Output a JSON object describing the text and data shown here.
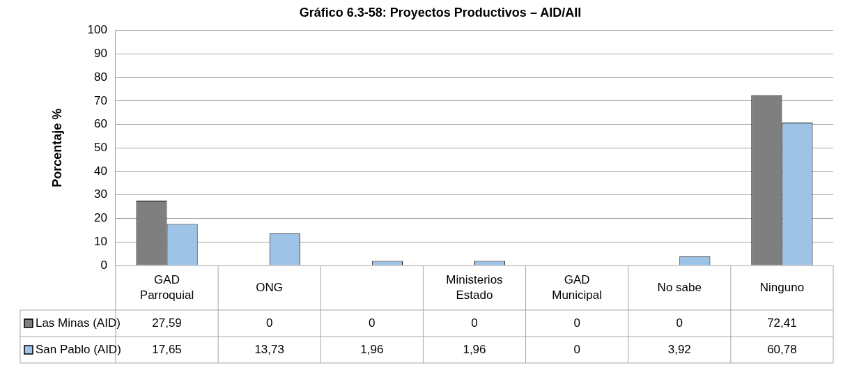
{
  "chart_data": {
    "type": "bar",
    "title": "Gráfico 6.3-58: Proyectos Productivos – AID/AII",
    "ylabel": "Porcentaje %",
    "categories": [
      "GAD Parroquial",
      "ONG",
      null,
      "Ministerios Estado",
      "GAD Municipal",
      "No sabe",
      "Ninguno"
    ],
    "series": [
      {
        "name": "Las Minas (AID)",
        "color": "#7f7f7f",
        "values": [
          27.59,
          0,
          0,
          0,
          0,
          0,
          72.41
        ],
        "value_labels": [
          "27,59",
          "0",
          "0",
          "0",
          "0",
          "0",
          "72,41"
        ]
      },
      {
        "name": "San Pablo (AID)",
        "color": "#9dc3e6",
        "values": [
          17.65,
          13.73,
          1.96,
          1.96,
          0,
          3.92,
          60.78
        ],
        "value_labels": [
          "17,65",
          "13,73",
          "1,96",
          "1,96",
          "0",
          "3,92",
          "60,78"
        ]
      }
    ],
    "ylim": [
      0,
      100
    ],
    "yticks": [
      0,
      10,
      20,
      30,
      40,
      50,
      60,
      70,
      80,
      90,
      100
    ],
    "grid": "y",
    "legend": "bottom"
  }
}
